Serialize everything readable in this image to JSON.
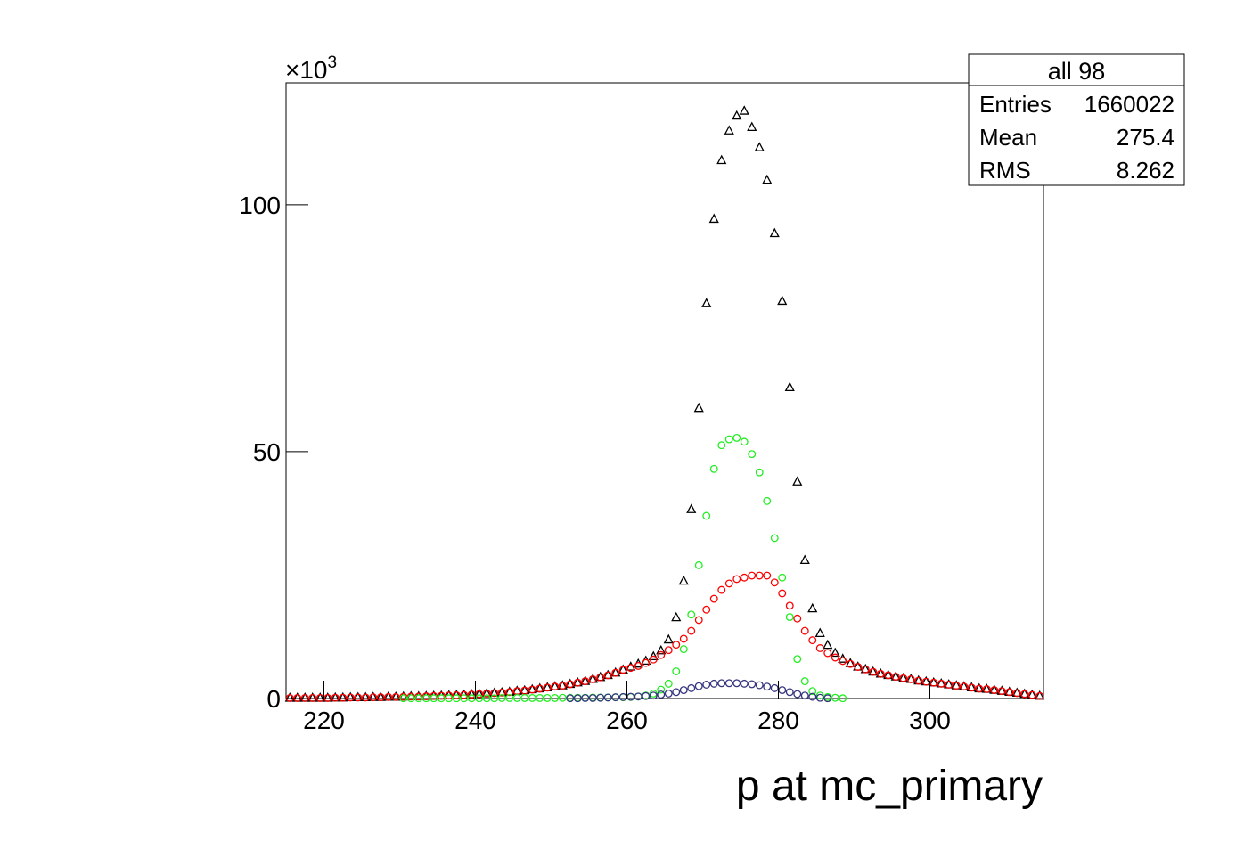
{
  "chart_data": {
    "type": "scatter",
    "x_label": "p at mc_primary",
    "y_scale_label": "×10",
    "y_scale_exponent": "3",
    "xlim": [
      215,
      315
    ],
    "ylim": [
      0,
      124.7
    ],
    "xticks": [
      220,
      240,
      260,
      280,
      300
    ],
    "yticks": [
      0,
      50,
      100
    ],
    "stats": {
      "title": "all 98",
      "rows": [
        [
          "Entries",
          1660022
        ],
        [
          "Mean",
          275.4
        ],
        [
          "RMS",
          8.262
        ]
      ]
    },
    "x": [
      215.5,
      216.5,
      217.5,
      218.5,
      219.5,
      220.5,
      221.5,
      222.5,
      223.5,
      224.5,
      225.5,
      226.5,
      227.5,
      228.5,
      229.5,
      230.5,
      231.5,
      232.5,
      233.5,
      234.5,
      235.5,
      236.5,
      237.5,
      238.5,
      239.5,
      240.5,
      241.5,
      242.5,
      243.5,
      244.5,
      245.5,
      246.5,
      247.5,
      248.5,
      249.5,
      250.5,
      251.5,
      252.5,
      253.5,
      254.5,
      255.5,
      256.5,
      257.5,
      258.5,
      259.5,
      260.5,
      261.5,
      262.5,
      263.5,
      264.5,
      265.5,
      266.5,
      267.5,
      268.5,
      269.5,
      270.5,
      271.5,
      272.5,
      273.5,
      274.5,
      275.5,
      276.5,
      277.5,
      278.5,
      279.5,
      280.5,
      281.5,
      282.5,
      283.5,
      284.5,
      285.5,
      286.5,
      287.5,
      288.5,
      289.5,
      290.5,
      291.5,
      292.5,
      293.5,
      294.5,
      295.5,
      296.5,
      297.5,
      298.5,
      299.5,
      300.5,
      301.5,
      302.5,
      303.5,
      304.5,
      305.5,
      306.5,
      307.5,
      308.5,
      309.5,
      310.5,
      311.5,
      312.5,
      313.5,
      314.5
    ],
    "series": [
      {
        "color": "#000000",
        "marker": "triangle",
        "values": [
          0.1,
          0.1,
          0.1,
          0.1,
          0.1,
          0.1,
          0.15,
          0.15,
          0.2,
          0.2,
          0.2,
          0.25,
          0.25,
          0.3,
          0.3,
          0.35,
          0.4,
          0.4,
          0.45,
          0.5,
          0.55,
          0.6,
          0.65,
          0.7,
          0.8,
          0.9,
          1,
          1.1,
          1.2,
          1.3,
          1.5,
          1.6,
          1.8,
          2,
          2.2,
          2.4,
          2.6,
          2.9,
          3.2,
          3.5,
          3.9,
          4.3,
          4.7,
          5.2,
          5.8,
          6.4,
          7,
          7.6,
          8.5,
          9.7,
          11.9,
          16.4,
          23.8,
          38.3,
          58.8,
          80,
          97.1,
          109,
          115,
          118,
          119,
          115.7,
          111.6,
          105,
          94.2,
          80.5,
          63,
          43.9,
          28,
          18.2,
          13.2,
          10.8,
          9.2,
          8,
          7.1,
          6.4,
          5.9,
          5.4,
          5,
          4.7,
          4.4,
          4.1,
          3.9,
          3.6,
          3.4,
          3.2,
          3,
          2.8,
          2.6,
          2.4,
          2.2,
          2,
          1.9,
          1.7,
          1.5,
          1.3,
          1.1,
          0.9,
          0.7,
          0.5
        ]
      },
      {
        "color": "#ff0000",
        "marker": "circle",
        "values": [
          0.1,
          0.1,
          0.1,
          0.1,
          0.1,
          0.1,
          0.15,
          0.15,
          0.2,
          0.2,
          0.2,
          0.25,
          0.25,
          0.3,
          0.3,
          0.35,
          0.4,
          0.4,
          0.45,
          0.5,
          0.55,
          0.6,
          0.65,
          0.7,
          0.8,
          0.9,
          1,
          1.1,
          1.2,
          1.3,
          1.5,
          1.6,
          1.8,
          2,
          2.2,
          2.4,
          2.6,
          2.9,
          3.2,
          3.5,
          3.9,
          4.3,
          4.7,
          5.2,
          5.8,
          6.2,
          6.6,
          7.2,
          7.9,
          8.8,
          9.8,
          10.9,
          12.1,
          13.7,
          15.9,
          18,
          20.2,
          22,
          23.3,
          24.2,
          24.5,
          24.9,
          24.9,
          24.9,
          23.5,
          21.3,
          18.8,
          16.2,
          13.7,
          11.8,
          10.2,
          9.2,
          8.3,
          7.6,
          7,
          6.4,
          5.9,
          5.4,
          5,
          4.7,
          4.4,
          4.1,
          3.9,
          3.6,
          3.4,
          3.2,
          3,
          2.8,
          2.6,
          2.4,
          2.2,
          2,
          1.9,
          1.7,
          1.5,
          1.3,
          1.1,
          0.9,
          0.7,
          0.5
        ]
      },
      {
        "color": "#22ee22",
        "marker": "circle",
        "values": [
          null,
          null,
          null,
          null,
          null,
          null,
          null,
          null,
          null,
          null,
          null,
          null,
          null,
          null,
          null,
          0.05,
          0.05,
          0.05,
          0.05,
          0.05,
          0.05,
          0.05,
          0.05,
          0.05,
          0.05,
          0.05,
          0.05,
          0.05,
          0.1,
          0.1,
          0.1,
          0.1,
          0.1,
          0.1,
          0.1,
          0.1,
          0.15,
          0.15,
          0.15,
          0.15,
          0.2,
          0.2,
          0.2,
          0.25,
          0.25,
          0.3,
          0.4,
          0.6,
          1,
          1.8,
          3,
          5.5,
          10,
          17,
          27,
          37,
          46.5,
          51.3,
          52.5,
          52.8,
          52,
          49.5,
          45.8,
          40,
          32.5,
          24.5,
          16.5,
          8,
          3.5,
          1.5,
          0.6,
          0.3,
          0.15,
          0.05,
          null,
          null,
          null,
          null,
          null,
          null,
          null,
          null,
          null,
          null,
          null,
          null,
          null,
          null,
          null,
          null,
          null,
          null,
          null,
          null,
          null,
          null,
          null,
          null,
          null,
          null
        ]
      },
      {
        "color": "#35357f",
        "marker": "circle",
        "values": [
          null,
          null,
          null,
          null,
          null,
          null,
          null,
          null,
          null,
          null,
          null,
          null,
          null,
          null,
          null,
          null,
          null,
          null,
          null,
          null,
          null,
          null,
          null,
          null,
          null,
          null,
          null,
          null,
          null,
          null,
          null,
          null,
          null,
          null,
          null,
          null,
          null,
          0.05,
          0.05,
          0.1,
          0.1,
          0.15,
          0.2,
          0.25,
          0.3,
          0.35,
          0.4,
          0.5,
          0.6,
          0.8,
          1,
          1.3,
          1.7,
          2.1,
          2.5,
          2.8,
          3,
          3.1,
          3.1,
          3.1,
          3,
          2.9,
          2.7,
          2.4,
          2.1,
          1.7,
          1.3,
          0.9,
          0.6,
          0.35,
          0.15,
          0.05,
          null,
          null,
          null,
          null,
          null,
          null,
          null,
          null,
          null,
          null,
          null,
          null,
          null,
          null,
          null,
          null,
          null,
          null,
          null,
          null,
          null,
          null,
          null,
          null,
          null,
          null
        ]
      }
    ]
  }
}
